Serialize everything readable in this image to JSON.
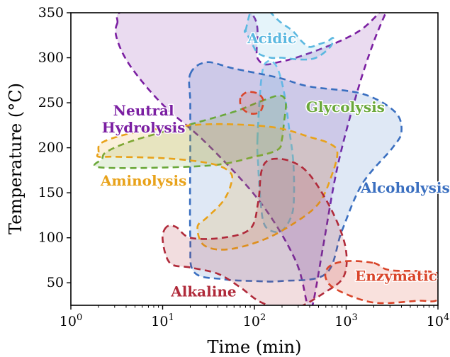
{
  "chart_data": {
    "type": "area",
    "title": "",
    "xlabel": "Time (min)",
    "ylabel": "Temperature (°C)",
    "xscale": "log",
    "xlim": [
      1,
      10000
    ],
    "ylim": [
      25,
      350
    ],
    "x_ticks": [
      1,
      10,
      100,
      1000,
      10000
    ],
    "x_tick_labels": [
      {
        "base": "10",
        "exp": "0"
      },
      {
        "base": "10",
        "exp": "1"
      },
      {
        "base": "10",
        "exp": "2"
      },
      {
        "base": "10",
        "exp": "3"
      },
      {
        "base": "10",
        "exp": "4"
      }
    ],
    "y_ticks": [
      50,
      100,
      150,
      200,
      250,
      300,
      350
    ],
    "grid": false,
    "legend": "none",
    "series": [
      {
        "name": "Neutral Hydrolysis",
        "color": "#7B1FA2",
        "label": [
          "Neutral",
          "Hydrolysis"
        ],
        "label_at": [
          6.2,
          236
        ],
        "points": [
          [
            3.2,
            338
          ],
          [
            4.5,
            353
          ],
          [
            80,
            353
          ],
          [
            110,
            298
          ],
          [
            200,
            296
          ],
          [
            600,
            312
          ],
          [
            1400,
            330
          ],
          [
            2400,
            352
          ],
          [
            3000,
            362
          ],
          [
            2000,
            318
          ],
          [
            1300,
            260
          ],
          [
            800,
            178
          ],
          [
            560,
            90
          ],
          [
            430,
            25
          ],
          [
            380,
            25
          ],
          [
            280,
            75
          ],
          [
            115,
            140
          ],
          [
            30,
            205
          ],
          [
            10,
            248
          ],
          [
            4.5,
            290
          ],
          [
            3.2,
            320
          ]
        ]
      },
      {
        "name": "Acidic",
        "color": "#5BB8E0",
        "label": [
          "Acidic"
        ],
        "label_at": [
          155,
          316
        ],
        "points": [
          [
            80,
            330
          ],
          [
            95,
            355
          ],
          [
            130,
            355
          ],
          [
            190,
            340
          ],
          [
            260,
            330
          ],
          [
            330,
            318
          ],
          [
            400,
            312
          ],
          [
            500,
            315
          ],
          [
            620,
            318
          ],
          [
            720,
            322
          ],
          [
            670,
            312
          ],
          [
            470,
            300
          ],
          [
            320,
            298
          ],
          [
            200,
            300
          ],
          [
            150,
            300
          ],
          [
            110,
            305
          ],
          [
            95,
            315
          ],
          [
            80,
            330
          ]
        ]
      },
      {
        "name": "Acidic (light blue)",
        "color": "#6CC4EC",
        "points": [
          [
            108,
            210
          ],
          [
            120,
            280
          ],
          [
            140,
            296
          ],
          [
            175,
            290
          ],
          [
            210,
            262
          ],
          [
            240,
            220
          ],
          [
            265,
            185
          ],
          [
            270,
            148
          ],
          [
            255,
            125
          ],
          [
            200,
            108
          ],
          [
            150,
            108
          ],
          [
            125,
            118
          ],
          [
            115,
            148
          ],
          [
            110,
            180
          ]
        ]
      },
      {
        "name": "Alcoholysis",
        "color": "#3A6FC0",
        "label": [
          "Alcoholysis"
        ],
        "label_at": [
          4400,
          150
        ],
        "points": [
          [
            20,
            282
          ],
          [
            30,
            295
          ],
          [
            60,
            288
          ],
          [
            180,
            278
          ],
          [
            400,
            268
          ],
          [
            1500,
            260
          ],
          [
            3400,
            240
          ],
          [
            4000,
            218
          ],
          [
            3200,
            200
          ],
          [
            1500,
            160
          ],
          [
            900,
            108
          ],
          [
            600,
            60
          ],
          [
            200,
            52
          ],
          [
            100,
            52
          ],
          [
            45,
            54
          ],
          [
            22,
            62
          ],
          [
            20,
            100
          ],
          [
            20,
            200
          ],
          [
            20,
            250
          ]
        ]
      },
      {
        "name": "Glycolysis",
        "color": "#6AA83A",
        "label": [
          "Glycolysis"
        ],
        "label_at": [
          980,
          240
        ],
        "points": [
          [
            2.2,
            188
          ],
          [
            2.5,
            196
          ],
          [
            4.8,
            208
          ],
          [
            20,
            226
          ],
          [
            60,
            240
          ],
          [
            120,
            252
          ],
          [
            190,
            258
          ],
          [
            220,
            250
          ],
          [
            210,
            228
          ],
          [
            200,
            210
          ],
          [
            180,
            198
          ],
          [
            100,
            190
          ],
          [
            30,
            180
          ],
          [
            2.2,
            178
          ]
        ]
      },
      {
        "name": "Aminolysis",
        "color": "#E8A21A",
        "label": [
          "Aminolysis"
        ],
        "label_at": [
          6.2,
          158
        ],
        "points": [
          [
            2.0,
            195
          ],
          [
            2.2,
            206
          ],
          [
            5,
            217
          ],
          [
            20,
            225
          ],
          [
            60,
            226
          ],
          [
            180,
            222
          ],
          [
            400,
            212
          ],
          [
            650,
            205
          ],
          [
            800,
            195
          ],
          [
            700,
            170
          ],
          [
            500,
            138
          ],
          [
            260,
            115
          ],
          [
            120,
            97
          ],
          [
            50,
            87
          ],
          [
            28,
            92
          ],
          [
            24,
            112
          ],
          [
            30,
            122
          ],
          [
            45,
            140
          ],
          [
            55,
            158
          ],
          [
            55,
            172
          ],
          [
            35,
            182
          ],
          [
            12,
            188
          ],
          [
            3,
            190
          ],
          [
            2.0,
            190
          ]
        ]
      },
      {
        "name": "Alkaline",
        "color": "#B02A3A",
        "label": [
          "Alkaline"
        ],
        "label_at": [
          28,
          35
        ],
        "points": [
          [
            11,
            112
          ],
          [
            10,
            98
          ],
          [
            12,
            72
          ],
          [
            20,
            67
          ],
          [
            40,
            60
          ],
          [
            70,
            45
          ],
          [
            120,
            28
          ],
          [
            250,
            20
          ],
          [
            600,
            40
          ],
          [
            950,
            58
          ],
          [
            980,
            90
          ],
          [
            700,
            130
          ],
          [
            400,
            170
          ],
          [
            250,
            185
          ],
          [
            150,
            187
          ],
          [
            120,
            175
          ],
          [
            110,
            140
          ],
          [
            90,
            110
          ],
          [
            45,
            100
          ],
          [
            20,
            100
          ],
          [
            14,
            112
          ]
        ]
      },
      {
        "name": "Enzymatic",
        "color": "#D9452A",
        "label": [
          "Enzymatic"
        ],
        "label_at": [
          3500,
          52
        ],
        "points": [
          [
            2000,
            72
          ],
          [
            3000,
            64
          ],
          [
            10000,
            60
          ],
          [
            10000,
            32
          ],
          [
            6000,
            30
          ],
          [
            2000,
            28
          ],
          [
            800,
            42
          ],
          [
            600,
            55
          ],
          [
            650,
            68
          ],
          [
            1000,
            74
          ]
        ]
      },
      {
        "name": "Small red blob",
        "color": "#D9452A",
        "points": [
          [
            72,
            257
          ],
          [
            85,
            262
          ],
          [
            110,
            260
          ],
          [
            125,
            252
          ],
          [
            115,
            240
          ],
          [
            90,
            238
          ],
          [
            75,
            243
          ],
          [
            70,
            250
          ]
        ]
      }
    ]
  }
}
